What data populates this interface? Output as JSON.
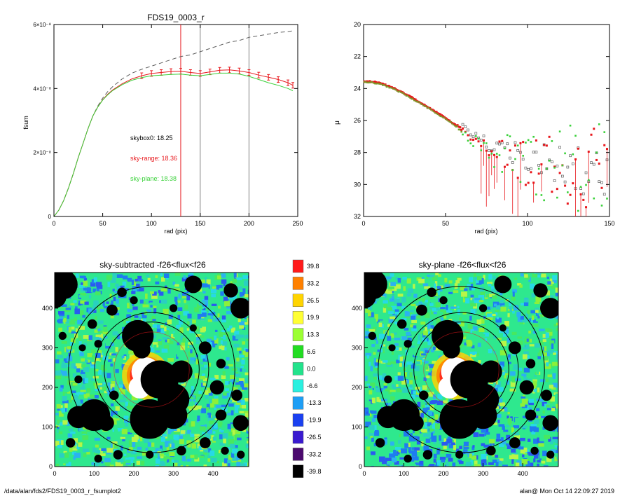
{
  "footer": {
    "path": "/data/alan/fds2/FDS19_0003_r_fsumplot2",
    "stamp": "alan@  Mon Oct 14 22:09:27 2019"
  },
  "colors": {
    "data": "#606060",
    "sky_range": "#e8171c",
    "sky_plane": "#3ad13a",
    "vline_red": "#e8171c",
    "vline_gray": "#808080"
  },
  "chart_data": [
    {
      "type": "line",
      "title": "FDS19_0003_r",
      "xlabel": "rad (pix)",
      "ylabel": "fsum",
      "xlim": [
        0,
        250
      ],
      "ylim": [
        0,
        6e-08
      ],
      "xticks": [
        "0",
        "50",
        "100",
        "150",
        "200",
        "250"
      ],
      "xtick_values": [
        0,
        50,
        100,
        150,
        200,
        250
      ],
      "yticks": [
        "0",
        "2×10⁻⁸",
        "4×10⁻⁸",
        "6×10⁻⁸"
      ],
      "ytick_values": [
        0,
        2e-08,
        4e-08,
        6e-08
      ],
      "vlines": [
        130,
        150,
        200
      ],
      "annotations": [
        {
          "text": "skybox0: 18.25",
          "color": "#000000"
        },
        {
          "text": "sky-range: 18.36",
          "color": "#e8171c"
        },
        {
          "text": "sky-plane: 18.38",
          "color": "#3ad13a"
        }
      ],
      "series": [
        {
          "style": "dashed",
          "color": "#606060",
          "x": [
            0,
            5,
            10,
            15,
            20,
            25,
            30,
            35,
            40,
            45,
            50,
            55,
            60,
            70,
            80,
            90,
            100,
            110,
            120,
            130,
            140,
            150,
            160,
            170,
            180,
            190,
            200,
            210,
            220,
            230,
            240,
            245
          ],
          "y": [
            0,
            2e-09,
            5e-09,
            9e-09,
            1.35e-08,
            1.85e-08,
            2.3e-08,
            2.75e-08,
            3.15e-08,
            3.45e-08,
            3.7e-08,
            3.9e-08,
            4.05e-08,
            4.3e-08,
            4.48e-08,
            4.6e-08,
            4.7e-08,
            4.8e-08,
            4.9e-08,
            5e-08,
            5.05e-08,
            5.15e-08,
            5.25e-08,
            5.35e-08,
            5.45e-08,
            5.5e-08,
            5.6e-08,
            5.65e-08,
            5.7e-08,
            5.75e-08,
            5.78e-08,
            5.8e-08
          ]
        },
        {
          "style": "solid",
          "color": "#e8171c",
          "x": [
            0,
            5,
            10,
            15,
            20,
            25,
            30,
            35,
            40,
            45,
            50,
            55,
            60,
            70,
            80,
            90,
            100,
            110,
            120,
            130,
            140,
            150,
            160,
            170,
            180,
            190,
            200,
            210,
            220,
            230,
            240,
            245
          ],
          "y": [
            0,
            2e-09,
            5e-09,
            9e-09,
            1.35e-08,
            1.85e-08,
            2.3e-08,
            2.75e-08,
            3.15e-08,
            3.42e-08,
            3.65e-08,
            3.82e-08,
            3.95e-08,
            4.15e-08,
            4.3e-08,
            4.4e-08,
            4.47e-08,
            4.5e-08,
            4.53e-08,
            4.54e-08,
            4.5e-08,
            4.47e-08,
            4.52e-08,
            4.57e-08,
            4.58e-08,
            4.55e-08,
            4.5e-08,
            4.42e-08,
            4.35e-08,
            4.28e-08,
            4.18e-08,
            4.1e-08
          ]
        },
        {
          "style": "solid",
          "color": "#3ad13a",
          "x": [
            0,
            5,
            10,
            15,
            20,
            25,
            30,
            35,
            40,
            45,
            50,
            55,
            60,
            70,
            80,
            90,
            100,
            110,
            120,
            130,
            140,
            150,
            160,
            170,
            180,
            190,
            200,
            210,
            220,
            230,
            240,
            245
          ],
          "y": [
            0,
            2e-09,
            5e-09,
            9e-09,
            1.35e-08,
            1.85e-08,
            2.3e-08,
            2.75e-08,
            3.15e-08,
            3.42e-08,
            3.64e-08,
            3.8e-08,
            3.93e-08,
            4.12e-08,
            4.26e-08,
            4.34e-08,
            4.4e-08,
            4.42e-08,
            4.44e-08,
            4.45e-08,
            4.42e-08,
            4.4e-08,
            4.44e-08,
            4.48e-08,
            4.48e-08,
            4.45e-08,
            4.38e-08,
            4.28e-08,
            4.18e-08,
            4.1e-08,
            4e-08,
            3.93e-08
          ]
        }
      ]
    },
    {
      "type": "scatter",
      "title": "",
      "xlabel": "rad (pix)",
      "ylabel": "μ",
      "xlim": [
        0,
        150
      ],
      "ylim": [
        32,
        20
      ],
      "xticks": [
        "0",
        "50",
        "100",
        "150"
      ],
      "xtick_values": [
        0,
        50,
        100,
        150
      ],
      "yticks": [
        "20",
        "22",
        "24",
        "26",
        "28",
        "30",
        "32"
      ],
      "ytick_values": [
        20,
        22,
        24,
        26,
        28,
        30,
        32
      ],
      "profile": {
        "x": [
          0,
          5,
          10,
          20,
          30,
          40,
          50,
          60,
          65,
          70,
          75,
          80,
          90,
          100,
          110,
          120,
          130,
          140,
          150
        ],
        "y": [
          23.3,
          23.32,
          23.4,
          23.8,
          24.35,
          24.95,
          25.6,
          26.3,
          26.8,
          27.1,
          27.4,
          27.6,
          28.0,
          28.3,
          28.6,
          28.8,
          28.9,
          29.0,
          29.1
        ]
      }
    },
    {
      "type": "heatmap",
      "title": "sky-subtracted -f26<flux<f26",
      "xlim": [
        0,
        490
      ],
      "ylim": [
        0,
        490
      ],
      "xticks": [
        "0",
        "100",
        "200",
        "300",
        "400"
      ],
      "yticks": [
        "0",
        "100",
        "200",
        "300",
        "400"
      ],
      "tick_values": [
        0,
        100,
        200,
        300,
        400
      ],
      "rings": [
        150,
        120,
        100
      ]
    },
    {
      "type": "heatmap",
      "title": "sky-plane -f26<flux<f26",
      "xlim": [
        0,
        490
      ],
      "ylim": [
        0,
        490
      ],
      "xticks": [
        "0",
        "100",
        "200",
        "300",
        "400"
      ],
      "yticks": [
        "0",
        "100",
        "200",
        "300",
        "400"
      ],
      "tick_values": [
        0,
        100,
        200,
        300,
        400
      ],
      "rings": [
        150,
        120,
        100
      ]
    }
  ],
  "colorbar": {
    "labels": [
      "39.8",
      "33.2",
      "26.5",
      "19.9",
      "13.3",
      "6.6",
      "0.0",
      "-6.6",
      "-13.3",
      "-19.9",
      "-26.5",
      "-33.2",
      "-39.8"
    ],
    "colors": [
      "#ff1a1a",
      "#ff8000",
      "#ffd400",
      "#ffff33",
      "#9cff33",
      "#22dd22",
      "#22e38c",
      "#2af0e0",
      "#1e9ef5",
      "#1a40f0",
      "#3a1ad0",
      "#4b0a6e",
      "#000000"
    ]
  },
  "sources": [
    [
      210,
      330,
      40
    ],
    [
      220,
      295,
      22
    ],
    [
      265,
      220,
      48
    ],
    [
      320,
      240,
      28
    ],
    [
      300,
      170,
      40
    ],
    [
      240,
      120,
      50
    ],
    [
      300,
      130,
      35
    ],
    [
      100,
      130,
      40
    ],
    [
      60,
      125,
      28
    ],
    [
      130,
      110,
      20
    ],
    [
      20,
      460,
      38
    ],
    [
      0,
      430,
      30
    ],
    [
      470,
      400,
      26
    ],
    [
      445,
      445,
      18
    ],
    [
      350,
      460,
      22
    ],
    [
      145,
      395,
      14
    ],
    [
      170,
      440,
      12
    ],
    [
      95,
      360,
      12
    ],
    [
      110,
      310,
      10
    ],
    [
      70,
      300,
      9
    ],
    [
      380,
      300,
      16
    ],
    [
      420,
      260,
      12
    ],
    [
      410,
      200,
      18
    ],
    [
      460,
      180,
      14
    ],
    [
      470,
      110,
      20
    ],
    [
      420,
      130,
      14
    ],
    [
      380,
      60,
      14
    ],
    [
      320,
      40,
      12
    ],
    [
      240,
      30,
      10
    ],
    [
      160,
      30,
      12
    ],
    [
      110,
      20,
      10
    ],
    [
      40,
      60,
      12
    ],
    [
      60,
      220,
      10
    ],
    [
      20,
      330,
      10
    ],
    [
      200,
      420,
      10
    ],
    [
      300,
      400,
      10
    ],
    [
      150,
      180,
      12
    ],
    [
      430,
      40,
      10
    ],
    [
      470,
      30,
      10
    ],
    [
      350,
      350,
      9
    ]
  ]
}
